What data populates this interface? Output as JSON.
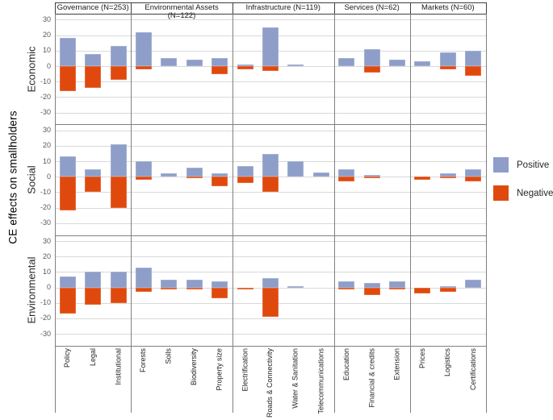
{
  "figure": {
    "y_axis_title": "CE effects on smallholders"
  },
  "legend": {
    "position": "right",
    "items": [
      {
        "label": "Positive",
        "color": "#8E9EC9"
      },
      {
        "label": "Negative",
        "color": "#E0490D"
      }
    ]
  },
  "colors": {
    "positive": "#8E9EC9",
    "negative": "#E0490D",
    "gridline": "#D9D9D9",
    "panel_border": "#808080",
    "header_border": "#3F3F3F",
    "tick_text": "#595959",
    "label_text": "#262626"
  },
  "chart_data": {
    "type": "bar",
    "subtype": "diverging-stacked small multiples (3 value panels x 5 category groups)",
    "ylabel": "CE effects on smallholders",
    "yticks": [
      30,
      20,
      10,
      0,
      -10,
      -20,
      -30
    ],
    "ylim": [
      -38,
      34
    ],
    "grid": true,
    "legend_position": "right",
    "row_panels": [
      "Economic",
      "Social",
      "Environmental"
    ],
    "col_groups": [
      {
        "label": "Governance (N=253)",
        "categories": [
          "Policy",
          "Legal",
          "Institutional"
        ]
      },
      {
        "label": "Environmental Assets (N=122)",
        "categories": [
          "Forests",
          "Soils",
          "Biodiversity",
          "Property size"
        ]
      },
      {
        "label": "Infrastructure (N=119)",
        "categories": [
          "Electrification",
          "Roads & Connectivity",
          "Water & Sanitation",
          "Telecommunications"
        ]
      },
      {
        "label": "Services (N=62)",
        "categories": [
          "Education",
          "Financial & credits",
          "Extension"
        ]
      },
      {
        "label": "Markets (N=60)",
        "categories": [
          "Prices",
          "Logistics",
          "Certifications"
        ]
      }
    ],
    "series": [
      {
        "name": "Positive",
        "color": "#8E9EC9",
        "values": {
          "Economic": [
            [
              18,
              8,
              13
            ],
            [
              22,
              5,
              4,
              5
            ],
            [
              1,
              25,
              1,
              0
            ],
            [
              5,
              11,
              4
            ],
            [
              3,
              9,
              10
            ]
          ],
          "Social": [
            [
              13,
              5,
              21
            ],
            [
              10,
              2,
              6,
              2
            ],
            [
              7,
              15,
              10,
              3
            ],
            [
              5,
              1,
              0
            ],
            [
              0,
              2,
              5
            ]
          ],
          "Environmental": [
            [
              7,
              10,
              10
            ],
            [
              13,
              5,
              5,
              4
            ],
            [
              0,
              6,
              1,
              0
            ],
            [
              4,
              3,
              4
            ],
            [
              0,
              1,
              5
            ]
          ]
        }
      },
      {
        "name": "Negative",
        "color": "#E0490D",
        "values": {
          "Economic": [
            [
              -16,
              -14,
              -9
            ],
            [
              -2,
              0,
              0,
              -5
            ],
            [
              -2,
              -3,
              0,
              0
            ],
            [
              0,
              -4,
              0
            ],
            [
              0,
              -2,
              -6
            ]
          ],
          "Social": [
            [
              -22,
              -10,
              -20
            ],
            [
              -2,
              0,
              -1,
              -6
            ],
            [
              -4,
              -10,
              0,
              0
            ],
            [
              -3,
              -1,
              0
            ],
            [
              -2,
              -1,
              -3
            ]
          ],
          "Environmental": [
            [
              -17,
              -11,
              -10
            ],
            [
              -3,
              -1,
              -1,
              -7
            ],
            [
              -1,
              -19,
              0,
              0
            ],
            [
              -1,
              -5,
              -1
            ],
            [
              -4,
              -3,
              0
            ]
          ]
        }
      }
    ]
  }
}
